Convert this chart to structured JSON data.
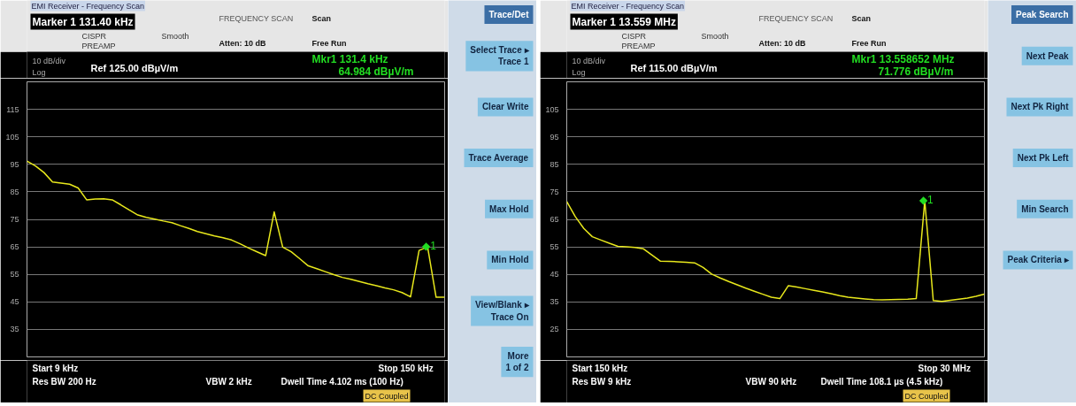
{
  "chart_data": [
    {
      "type": "line",
      "title": "EMI Receiver - Frequency Scan",
      "categories": [
        null,
        null,
        null,
        null,
        null,
        null,
        null,
        null,
        null,
        null,
        null,
        null,
        null,
        null,
        null,
        null,
        null,
        null,
        null,
        null,
        null,
        null,
        null,
        null,
        null,
        null,
        null,
        null,
        null,
        null,
        null,
        null,
        null,
        null,
        null,
        null,
        null,
        null,
        null,
        null,
        null,
        null,
        null,
        null,
        null,
        null,
        null,
        null,
        null,
        null
      ],
      "ylim": [
        25,
        125
      ],
      "yticks": [
        35,
        45,
        55,
        65,
        75,
        85,
        95,
        105,
        115
      ],
      "grid": "y",
      "tick_labels": "y",
      "series": [
        {
          "type": "line",
          "color": "#e8e81c",
          "values": [
            96.2,
            94.4,
            92,
            88.6,
            88.2,
            87.8,
            86.4,
            82.1,
            82.4,
            82.5,
            82.1,
            80.3,
            78.4,
            76.6,
            75.7,
            75.1,
            74.4,
            73.8,
            72.7,
            71.7,
            70.6,
            69.8,
            69.0,
            68.3,
            67.5,
            66.1,
            64.6,
            63.2,
            61.8,
            77.7,
            64.9,
            63.2,
            60.7,
            58.1,
            57.1,
            56.0,
            54.9,
            53.9,
            53.2,
            52.4,
            51.6,
            50.9,
            50.1,
            49.4,
            48.4,
            46.8,
            63.7,
            64.984,
            46.7,
            46.7
          ]
        }
      ],
      "annotations": [
        "Marker 1 131.40 kHz",
        "CISPR",
        "PREAMP",
        "Smooth",
        "FREQUENCY SCAN",
        "Atten: 10 dB",
        "Scan",
        "Free Run",
        "10 dB/div",
        "Log",
        "Ref 125.00 dBµV/m",
        "Mkr1  131.4 kHz",
        "64.984 dBµV/m",
        "Start 9 kHz",
        "Stop 150 kHz",
        "Res BW 200 Hz",
        "VBW 2 kHz",
        "Dwell Time 4.102 ms (100 Hz)",
        "DC Coupled",
        "Trace/Det",
        "Select Trace ▸\nTrace 1",
        "Clear Write",
        "Trace Average",
        "Max Hold",
        "Min Hold",
        "View/Blank ▸\nTrace On",
        "More\n1 of 2",
        {
          "text": "◆1",
          "y": 64.984
        }
      ]
    },
    {
      "type": "line",
      "title": "EMI Receiver - Frequency Scan",
      "categories": [
        null,
        null,
        null,
        null,
        null,
        null,
        null,
        null,
        null,
        null,
        null,
        null,
        null,
        null,
        null,
        null,
        null,
        null,
        null,
        null,
        null,
        null,
        null,
        null,
        null,
        null,
        null,
        null,
        null,
        null,
        null,
        null,
        null,
        null,
        null,
        null,
        null,
        null,
        null,
        null,
        null,
        null,
        null,
        null,
        null,
        null,
        null,
        null,
        null,
        null
      ],
      "ylim": [
        15,
        115
      ],
      "yticks": [
        25,
        35,
        45,
        55,
        65,
        75,
        85,
        95,
        105
      ],
      "grid": "y",
      "tick_labels": "y",
      "series": [
        {
          "type": "line",
          "color": "#e8e81c",
          "values": [
            71.5,
            66,
            61.7,
            58.7,
            57.5,
            56.3,
            55.2,
            55.0,
            54.8,
            54.3,
            52.0,
            49.8,
            49.7,
            49.6,
            49.4,
            49.2,
            47.5,
            45.1,
            43.7,
            42.4,
            41.2,
            40.0,
            38.9,
            37.8,
            36.7,
            36.2,
            40.9,
            40.4,
            39.8,
            39.2,
            38.6,
            38.0,
            37.3,
            36.7,
            36.4,
            36.1,
            35.8,
            35.7,
            35.8,
            35.9,
            36.0,
            36.2,
            71.776,
            35.5,
            35.2,
            35.6,
            36.0,
            36.4,
            37.0,
            37.8
          ]
        }
      ],
      "annotations": [
        "Marker 1 13.559 MHz",
        "CISPR",
        "PREAMP",
        "Smooth",
        "FREQUENCY SCAN",
        "Atten: 10 dB",
        "Scan",
        "Free Run",
        "10 dB/div",
        "Log",
        "Ref 115.00 dBµV/m",
        "Mkr1  13.558652 MHz",
        "71.776 dBµV/m",
        "Start 150 kHz",
        "Stop 30 MHz",
        "Res BW 9 kHz",
        "VBW 90 kHz",
        "Dwell Time 108.1 µs (4.5 kHz)",
        "DC Coupled",
        "Peak Search",
        "Next Peak",
        "Next Pk Right",
        "Next Pk Left",
        "Min Search",
        "Peak Criteria ▸",
        {
          "text": "◆1",
          "y": 71.776
        }
      ]
    }
  ]
}
